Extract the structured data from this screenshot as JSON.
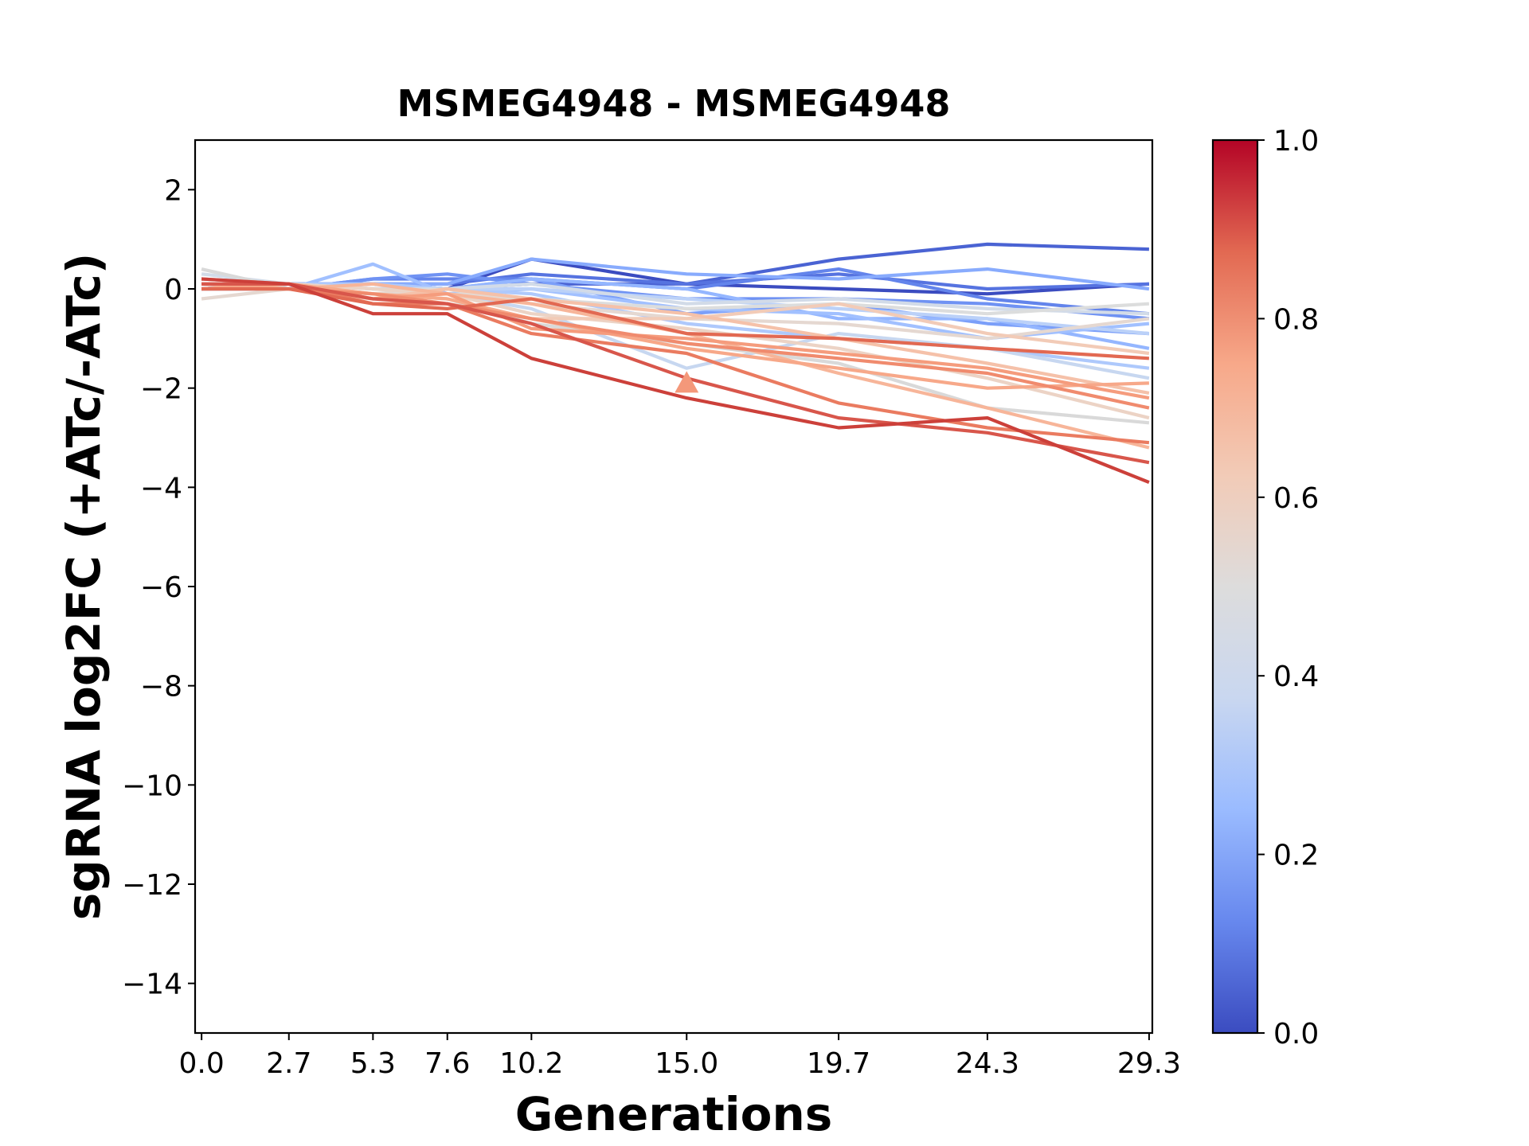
{
  "chart_data": {
    "type": "line",
    "title": "MSMEG4948 - MSMEG4948",
    "xlabel": "Generations",
    "ylabel": "sgRNA log2FC (+ATc/-ATc)",
    "x": [
      0.0,
      2.7,
      5.3,
      7.6,
      10.2,
      15.0,
      19.7,
      24.3,
      29.3
    ],
    "x_tick_labels": [
      "0.0",
      "2.7",
      "5.3",
      "7.6",
      "10.2",
      "15.0",
      "19.7",
      "24.3",
      "29.3"
    ],
    "xlim": [
      -0.2,
      29.4
    ],
    "ylim": [
      -15,
      3
    ],
    "y_ticks": [
      2,
      0,
      -2,
      -4,
      -6,
      -8,
      -10,
      -12,
      -14
    ],
    "y_tick_labels": [
      "2",
      "0",
      "−2",
      "−4",
      "−6",
      "−8",
      "−10",
      "−12",
      "−14"
    ],
    "colorbar": {
      "colormap": "coolwarm",
      "range": [
        0.0,
        1.0
      ],
      "ticks": [
        "0.0",
        "0.2",
        "0.4",
        "0.6",
        "0.8",
        "1.0"
      ],
      "colors": [
        "#3b4cc0",
        "#6788ee",
        "#9abbff",
        "#c9d7f0",
        "#dddcdc",
        "#f2cbb7",
        "#f7a889",
        "#e26952",
        "#b40426"
      ]
    },
    "marker": {
      "x": 15.0,
      "y": -1.9,
      "shape": "triangle-up",
      "color": "#f4987a"
    },
    "series": [
      {
        "color": "#3b4cc0",
        "values": [
          0.0,
          0.1,
          0.1,
          0.0,
          0.6,
          0.1,
          0.0,
          -0.1,
          0.1
        ]
      },
      {
        "color": "#4a63d3",
        "values": [
          0.0,
          0.1,
          0.1,
          0.0,
          0.1,
          0.1,
          0.6,
          0.9,
          0.8
        ]
      },
      {
        "color": "#5673e0",
        "values": [
          0.0,
          0.1,
          0.1,
          0.1,
          0.3,
          0.1,
          0.3,
          0.0,
          0.1
        ]
      },
      {
        "color": "#6384eb",
        "values": [
          0.0,
          0.0,
          0.2,
          0.2,
          0.2,
          0.0,
          0.4,
          -0.2,
          -0.5
        ]
      },
      {
        "color": "#6f92f3",
        "values": [
          0.1,
          0.0,
          0.2,
          0.3,
          0.1,
          -0.2,
          -0.2,
          -0.3,
          -0.6
        ]
      },
      {
        "color": "#7b9ff9",
        "values": [
          0.0,
          0.1,
          0.0,
          0.0,
          0.2,
          -0.5,
          -0.3,
          -0.7,
          -0.9
        ]
      },
      {
        "color": "#88abfd",
        "values": [
          0.0,
          0.1,
          0.1,
          0.1,
          0.6,
          0.3,
          0.2,
          0.4,
          0.0
        ]
      },
      {
        "color": "#94b6ff",
        "values": [
          0.0,
          0.0,
          0.1,
          0.0,
          0.2,
          0.0,
          -0.6,
          -0.6,
          -1.2
        ]
      },
      {
        "color": "#a1c0ff",
        "values": [
          0.0,
          0.0,
          0.5,
          -0.1,
          0.0,
          -0.4,
          -0.5,
          -1.0,
          -0.7
        ]
      },
      {
        "color": "#aec9fc",
        "values": [
          0.1,
          0.1,
          0.1,
          0.0,
          -0.1,
          -0.7,
          -1.0,
          -1.2,
          -1.6
        ]
      },
      {
        "color": "#bbd1f8",
        "values": [
          0.2,
          0.1,
          0.0,
          0.0,
          0.0,
          -0.2,
          -0.4,
          -0.6,
          -0.9
        ]
      },
      {
        "color": "#c7d7f0",
        "values": [
          0.0,
          0.0,
          -0.1,
          -0.1,
          -0.4,
          -1.6,
          -0.9,
          -1.2,
          -1.8
        ]
      },
      {
        "color": "#d2dbe8",
        "values": [
          0.3,
          0.1,
          0.0,
          0.0,
          0.1,
          -0.3,
          -0.2,
          -0.4,
          -0.5
        ]
      },
      {
        "color": "#dcdddd",
        "values": [
          0.1,
          0.1,
          0.0,
          -0.1,
          -0.2,
          -0.4,
          -0.3,
          -0.5,
          -0.3
        ]
      },
      {
        "color": "#d9d9d9",
        "values": [
          0.4,
          0.0,
          -0.1,
          -0.2,
          -0.7,
          -1.1,
          -1.5,
          -2.4,
          -2.7
        ]
      },
      {
        "color": "#e5d8d1",
        "values": [
          -0.2,
          0.0,
          -0.1,
          0.0,
          -0.3,
          -0.6,
          -0.7,
          -1.0,
          -0.6
        ]
      },
      {
        "color": "#ecd3c5",
        "values": [
          0.0,
          0.1,
          0.0,
          -0.1,
          -0.5,
          -0.8,
          -1.2,
          -1.8,
          -2.6
        ]
      },
      {
        "color": "#f2cbb7",
        "values": [
          0.1,
          0.1,
          -0.1,
          -0.2,
          -0.6,
          -0.6,
          -0.3,
          -0.9,
          -1.3
        ]
      },
      {
        "color": "#f5c1a9",
        "values": [
          0.0,
          0.0,
          -0.2,
          0.0,
          -0.2,
          -0.5,
          -1.0,
          -1.5,
          -2.1
        ]
      },
      {
        "color": "#f7b599",
        "values": [
          0.1,
          0.0,
          0.1,
          -0.1,
          -0.3,
          -0.9,
          -1.7,
          -2.4,
          -3.2
        ]
      },
      {
        "color": "#f7a889",
        "values": [
          0.0,
          0.1,
          -0.1,
          -0.2,
          -0.6,
          -1.2,
          -1.6,
          -2.0,
          -1.9
        ]
      },
      {
        "color": "#f59c7d",
        "values": [
          0.2,
          0.1,
          -0.2,
          -0.1,
          -0.8,
          -1.0,
          -1.3,
          -1.6,
          -2.2
        ]
      },
      {
        "color": "#f08b6e",
        "values": [
          0.0,
          0.0,
          -0.1,
          -0.3,
          -0.6,
          -1.1,
          -1.4,
          -1.7,
          -2.4
        ]
      },
      {
        "color": "#ea7b60",
        "values": [
          0.1,
          0.1,
          -0.3,
          -0.3,
          -0.9,
          -1.3,
          -2.3,
          -2.8,
          -3.1
        ]
      },
      {
        "color": "#e26952",
        "values": [
          0.0,
          0.0,
          -0.3,
          -0.4,
          -0.2,
          -0.9,
          -1.0,
          -1.2,
          -1.4
        ]
      },
      {
        "color": "#d8564b",
        "values": [
          0.1,
          0.1,
          -0.2,
          -0.3,
          -0.7,
          -1.8,
          -2.6,
          -2.9,
          -3.5
        ]
      },
      {
        "color": "#cc403a",
        "values": [
          0.2,
          0.1,
          -0.5,
          -0.5,
          -1.4,
          -2.2,
          -2.8,
          -2.6,
          -3.9
        ]
      }
    ]
  }
}
